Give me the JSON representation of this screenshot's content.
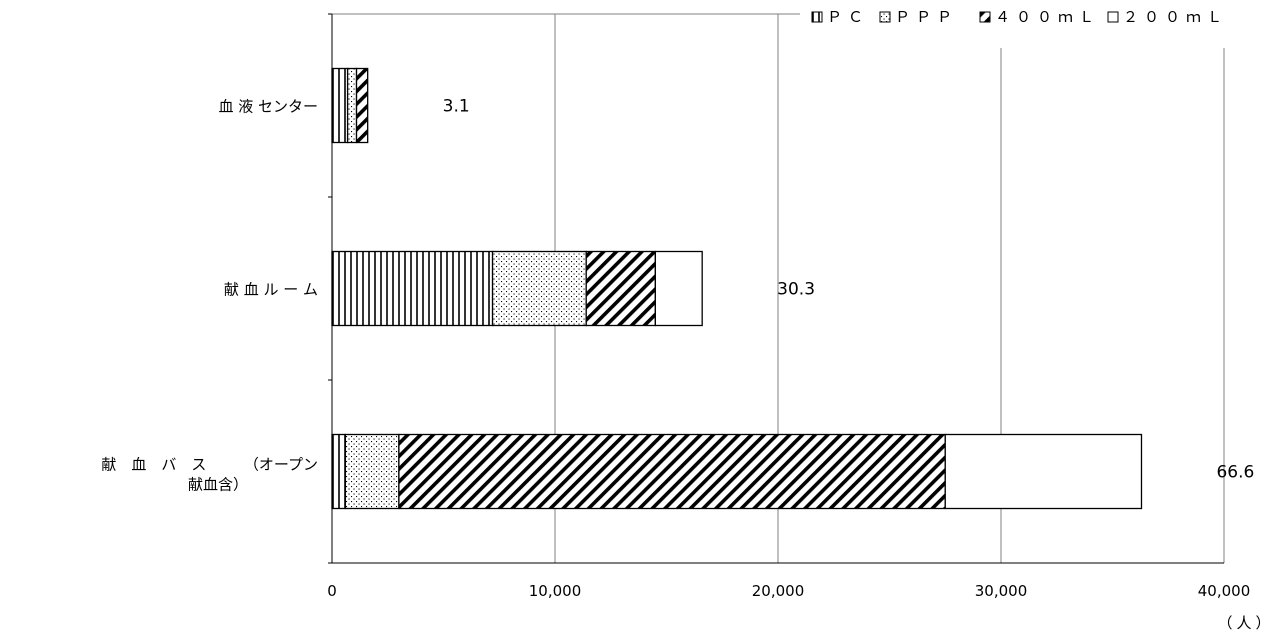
{
  "chart_data": {
    "type": "bar",
    "orientation": "horizontal",
    "stacked": true,
    "categories": [
      "血 液 センター",
      "献 血 ル ー ム",
      "献　血　バ　ス　　　（オープン献血含）"
    ],
    "category_label_lines": [
      [
        "血 液 センター"
      ],
      [
        "献 血 ル ー ム"
      ],
      [
        "献　血　バ　ス　　　（オープン",
        "献血含）"
      ]
    ],
    "series": [
      {
        "name": "ＰＣ",
        "pattern": "vertical-lines",
        "values": [
          700,
          7200,
          600
        ]
      },
      {
        "name": "ＰＰＰ",
        "pattern": "dots",
        "values": [
          400,
          4200,
          2400
        ]
      },
      {
        "name": "４００ｍＬ",
        "pattern": "diagonal-lines",
        "values": [
          500,
          3100,
          24500
        ]
      },
      {
        "name": "２００ｍＬ",
        "pattern": "blank",
        "values": [
          0,
          2100,
          8800
        ]
      }
    ],
    "data_labels": [
      "3.1",
      "30.3",
      "66.6"
    ],
    "xlim": [
      0,
      40000
    ],
    "xticks": [
      0,
      10000,
      20000,
      30000,
      40000
    ],
    "xtick_labels": [
      "0",
      "10,000",
      "20,000",
      "30,000",
      "40,000"
    ],
    "x_unit": "（人）",
    "grid": "vertical",
    "legend_position": "top-right",
    "colors": {
      "stroke": "#000000",
      "fill": "#ffffff",
      "grid": "#808080"
    }
  }
}
